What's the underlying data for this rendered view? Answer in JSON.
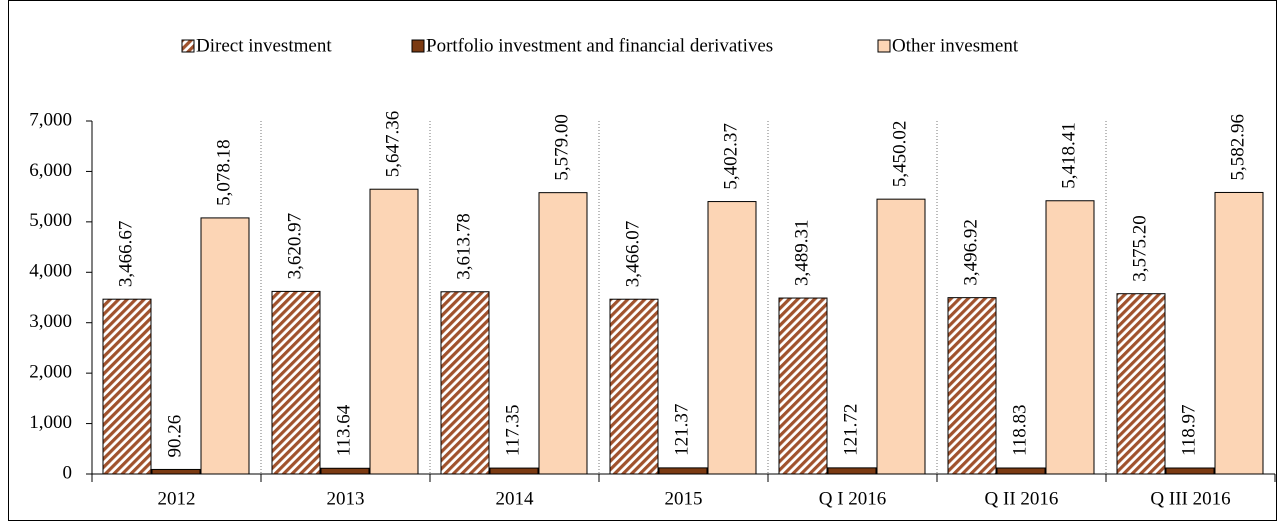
{
  "chart_data": {
    "type": "bar",
    "categories": [
      "2012",
      "2013",
      "2014",
      "2015",
      "Q I 2016",
      "Q II 2016",
      "Q III 2016"
    ],
    "series": [
      {
        "name": "Direct investment",
        "color": "#a0522d",
        "pattern": "hatch",
        "values": [
          3466.67,
          3620.97,
          3613.78,
          3466.07,
          3489.31,
          3496.92,
          3575.2
        ],
        "value_labels": [
          "3,466.67",
          "3,620.97",
          "3,613.78",
          "3,466.07",
          "3,489.31",
          "3,496.92",
          "3,575.20"
        ]
      },
      {
        "name": "Portfolio investment and financial derivatives",
        "color": "#7b3a12",
        "values": [
          90.26,
          113.64,
          117.35,
          121.37,
          121.72,
          118.83,
          118.97
        ]
      },
      {
        "name": "Other invesment",
        "color": "#fcd5b5",
        "values": [
          5078.18,
          5647.36,
          5579.0,
          5402.37,
          5450.02,
          5418.41,
          5582.96
        ],
        "value_labels": [
          "5,078.18",
          "5,647.36",
          "5,579.00",
          "5,402.37",
          "5,450.02",
          "5,418.41",
          "5,582.96"
        ]
      }
    ],
    "ylim": [
      0,
      7000
    ],
    "yticks": [
      0,
      {
        "value": 1000,
        "label": "1,000"
      },
      {
        "value": 2000,
        "label": "2,000"
      },
      {
        "value": 3000,
        "label": "3,000"
      },
      {
        "value": 4000,
        "label": "4,000"
      },
      {
        "value": 5000,
        "label": "5,000"
      },
      {
        "value": 6000,
        "label": "6,000"
      },
      {
        "value": 7000,
        "label": "7,000"
      }
    ],
    "legend": "top",
    "separators": true
  }
}
